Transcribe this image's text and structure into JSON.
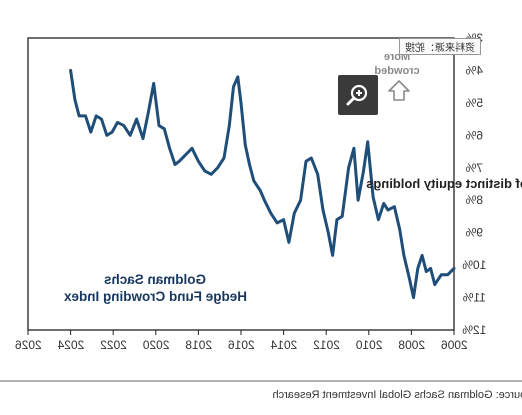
{
  "chart_data": {
    "type": "line",
    "title": "Goldman Sachs",
    "subtitle": "Hedge Fund Crowding Index",
    "xlabel": "",
    "ylabel": "Effective N as % of distinct equity holdings",
    "x_ticks": [
      "2006",
      "2008",
      "2010",
      "2012",
      "2014",
      "2016",
      "2018",
      "2020",
      "2022",
      "2024",
      "2026"
    ],
    "xlim": [
      2006,
      2026
    ],
    "y_ticks": [
      "3%",
      "4%",
      "5%",
      "6%",
      "7%",
      "8%",
      "9%",
      "10%",
      "11%",
      "12%"
    ],
    "ylim": [
      3,
      12
    ],
    "y_inverted": true,
    "mirrored_horizontally": true,
    "grid": false,
    "line_color": "#1f4e79",
    "series": [
      {
        "values": [
          {
            "x": 2006.0,
            "y": 10.1
          },
          {
            "x": 2006.3,
            "y": 10.3
          },
          {
            "x": 2006.6,
            "y": 10.3
          },
          {
            "x": 2006.9,
            "y": 10.6
          },
          {
            "x": 2007.1,
            "y": 10.1
          },
          {
            "x": 2007.3,
            "y": 10.2
          },
          {
            "x": 2007.5,
            "y": 9.7
          },
          {
            "x": 2007.7,
            "y": 10.1
          },
          {
            "x": 2007.9,
            "y": 11.0
          },
          {
            "x": 2008.1,
            "y": 10.4
          },
          {
            "x": 2008.35,
            "y": 9.7
          },
          {
            "x": 2008.55,
            "y": 8.9
          },
          {
            "x": 2008.8,
            "y": 8.2
          },
          {
            "x": 2009.1,
            "y": 8.3
          },
          {
            "x": 2009.3,
            "y": 8.1
          },
          {
            "x": 2009.55,
            "y": 8.6
          },
          {
            "x": 2009.8,
            "y": 7.9
          },
          {
            "x": 2010.05,
            "y": 6.2
          },
          {
            "x": 2010.25,
            "y": 7.1
          },
          {
            "x": 2010.5,
            "y": 8.0
          },
          {
            "x": 2010.7,
            "y": 6.4
          },
          {
            "x": 2010.95,
            "y": 7.0
          },
          {
            "x": 2011.25,
            "y": 8.5
          },
          {
            "x": 2011.5,
            "y": 8.6
          },
          {
            "x": 2011.7,
            "y": 9.7
          },
          {
            "x": 2011.9,
            "y": 9.0
          },
          {
            "x": 2012.15,
            "y": 8.3
          },
          {
            "x": 2012.4,
            "y": 7.2
          },
          {
            "x": 2012.7,
            "y": 6.7
          },
          {
            "x": 2012.95,
            "y": 6.8
          },
          {
            "x": 2013.2,
            "y": 8.0
          },
          {
            "x": 2013.5,
            "y": 8.4
          },
          {
            "x": 2013.75,
            "y": 9.3
          },
          {
            "x": 2014.0,
            "y": 8.6
          },
          {
            "x": 2014.3,
            "y": 8.7
          },
          {
            "x": 2014.6,
            "y": 8.4
          },
          {
            "x": 2014.9,
            "y": 8.0
          },
          {
            "x": 2015.1,
            "y": 7.7
          },
          {
            "x": 2015.4,
            "y": 7.4
          },
          {
            "x": 2015.6,
            "y": 6.9
          },
          {
            "x": 2015.8,
            "y": 6.3
          },
          {
            "x": 2016.0,
            "y": 5.0
          },
          {
            "x": 2016.15,
            "y": 4.2
          },
          {
            "x": 2016.35,
            "y": 4.5
          },
          {
            "x": 2016.55,
            "y": 5.7
          },
          {
            "x": 2016.8,
            "y": 6.7
          },
          {
            "x": 2017.1,
            "y": 7.0
          },
          {
            "x": 2017.4,
            "y": 7.2
          },
          {
            "x": 2017.7,
            "y": 7.1
          },
          {
            "x": 2018.0,
            "y": 6.8
          },
          {
            "x": 2018.3,
            "y": 6.4
          },
          {
            "x": 2018.6,
            "y": 6.6
          },
          {
            "x": 2018.9,
            "y": 6.8
          },
          {
            "x": 2019.1,
            "y": 6.9
          },
          {
            "x": 2019.35,
            "y": 6.4
          },
          {
            "x": 2019.6,
            "y": 5.8
          },
          {
            "x": 2019.85,
            "y": 5.7
          },
          {
            "x": 2020.1,
            "y": 4.4
          },
          {
            "x": 2020.35,
            "y": 5.3
          },
          {
            "x": 2020.6,
            "y": 6.1
          },
          {
            "x": 2020.9,
            "y": 5.5
          },
          {
            "x": 2021.2,
            "y": 6.0
          },
          {
            "x": 2021.5,
            "y": 5.7
          },
          {
            "x": 2021.8,
            "y": 5.6
          },
          {
            "x": 2022.05,
            "y": 5.9
          },
          {
            "x": 2022.3,
            "y": 6.0
          },
          {
            "x": 2022.55,
            "y": 5.5
          },
          {
            "x": 2022.8,
            "y": 5.4
          },
          {
            "x": 2023.05,
            "y": 5.9
          },
          {
            "x": 2023.3,
            "y": 5.4
          },
          {
            "x": 2023.6,
            "y": 5.4
          },
          {
            "x": 2023.8,
            "y": 4.9
          },
          {
            "x": 2024.0,
            "y": 4.0
          }
        ]
      }
    ]
  },
  "annotation": {
    "line1": "More",
    "line2": "crowded",
    "arrow_icon": "up-arrow-icon"
  },
  "source": "Source: Goldman Sachs Global Investment Research",
  "watermark": "资料来源：驼搜",
  "zoom": {
    "icon": "zoom-in-icon"
  }
}
